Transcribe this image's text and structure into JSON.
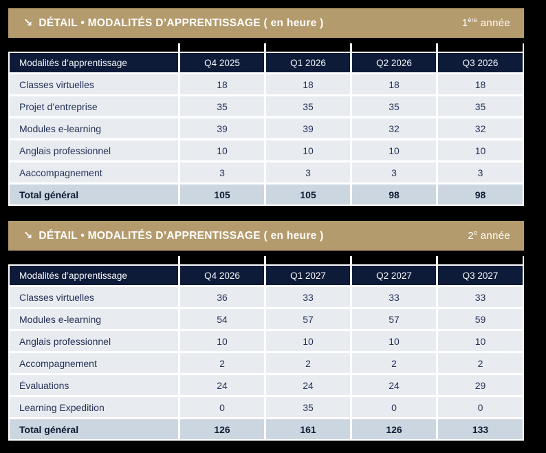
{
  "page": {
    "background_color": "#000000",
    "banner_color": "#b49b6d",
    "header_color": "#0e1b38",
    "row_color": "#e8ecf1",
    "total_row_color": "#ccd6e0",
    "text_color": "#243257"
  },
  "tables": [
    {
      "banner": {
        "arrow": "↘",
        "title": "DÉTAIL • MODALITÉS D’APPRENTISSAGE ( en heure )",
        "year_num": "1",
        "year_sup": "ère",
        "year_suffix": " année"
      },
      "header": [
        "Modalités d’apprentissage",
        "Q4 2025",
        "Q1 2026",
        "Q2 2026",
        "Q3 2026"
      ],
      "rows": [
        {
          "label": "Classes virtuelles",
          "values": [
            "18",
            "18",
            "18",
            "18"
          ]
        },
        {
          "label": "Projet d’entreprise",
          "values": [
            "35",
            "35",
            "35",
            "35"
          ]
        },
        {
          "label": "Modules e-learning",
          "values": [
            "39",
            "39",
            "32",
            "32"
          ]
        },
        {
          "label": "Anglais professionnel",
          "values": [
            "10",
            "10",
            "10",
            "10"
          ]
        },
        {
          "label": "Aaccompagnement",
          "values": [
            "3",
            "3",
            "3",
            "3"
          ]
        }
      ],
      "total": {
        "label": "Total général",
        "values": [
          "105",
          "105",
          "98",
          "98"
        ]
      }
    },
    {
      "banner": {
        "arrow": "↘",
        "title": "DÉTAIL • MODALITÉS D’APPRENTISSAGE ( en heure )",
        "year_num": "2",
        "year_sup": "e",
        "year_suffix": " année"
      },
      "header": [
        "Modalités d’apprentissage",
        "Q4 2026",
        "Q1 2027",
        "Q2 2027",
        "Q3 2027"
      ],
      "rows": [
        {
          "label": "Classes virtuelles",
          "values": [
            "36",
            "33",
            "33",
            "33"
          ]
        },
        {
          "label": "Modules e-learning",
          "values": [
            "54",
            "57",
            "57",
            "59"
          ]
        },
        {
          "label": "Anglais professionnel",
          "values": [
            "10",
            "10",
            "10",
            "10"
          ]
        },
        {
          "label": "Accompagnement",
          "values": [
            "2",
            "2",
            "2",
            "2"
          ]
        },
        {
          "label": "Évaluations",
          "values": [
            "24",
            "24",
            "24",
            "29"
          ]
        },
        {
          "label": "Learning Expedition",
          "values": [
            "0",
            "35",
            "0",
            "0"
          ]
        }
      ],
      "total": {
        "label": "Total général",
        "values": [
          "126",
          "161",
          "126",
          "133"
        ]
      }
    }
  ]
}
